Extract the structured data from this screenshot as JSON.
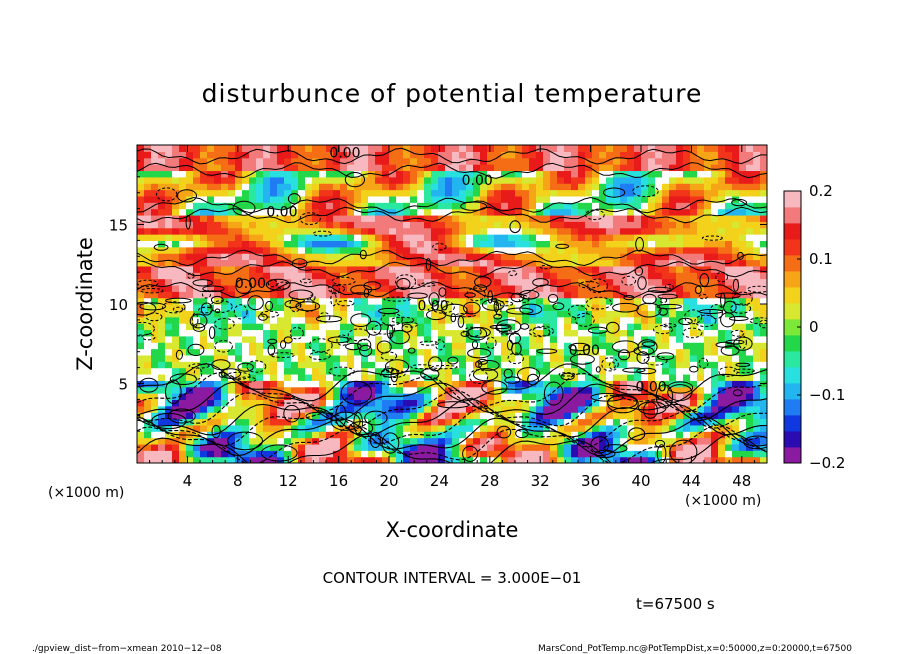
{
  "chart_data": {
    "type": "heatmap",
    "title": "disturbunce of potential temperature",
    "xlabel": "X-coordinate",
    "ylabel": "Z-coordinate",
    "x_unit": "(×1000 m)",
    "z_unit": "(×1000 m)",
    "xlim": [
      0,
      50
    ],
    "ylim": [
      0,
      20
    ],
    "x_ticks": [
      "4",
      "8",
      "12",
      "16",
      "20",
      "24",
      "28",
      "32",
      "36",
      "40",
      "44",
      "48"
    ],
    "x_tick_values": [
      4,
      8,
      12,
      16,
      20,
      24,
      28,
      32,
      36,
      40,
      44,
      48
    ],
    "y_ticks": [
      "5",
      "10",
      "15"
    ],
    "y_tick_values": [
      5,
      10,
      15
    ],
    "colorbar": {
      "min": -0.2,
      "max": 0.2,
      "ticks": [
        "0.2",
        "0.1",
        "0",
        "−0.1",
        "−0.2"
      ],
      "tick_values": [
        0.2,
        0.1,
        0,
        -0.1,
        -0.2
      ],
      "colors": [
        "#8a1aa0",
        "#2a0cb0",
        "#1038e0",
        "#1f7cf2",
        "#22b5f0",
        "#28e0e0",
        "#2ae8a0",
        "#22d84a",
        "#7ce838",
        "#d8e830",
        "#f2d21a",
        "#f5a516",
        "#f56e16",
        "#f2341a",
        "#e81a1a",
        "#f27a7a",
        "#f8b8c0"
      ]
    },
    "contour_labels": [
      "0.00",
      "0.00",
      "0.00",
      "0.00",
      "0.00",
      "0.00",
      "0.00"
    ],
    "contour_interval_text": "CONTOUR INTERVAL = 3.000E−01",
    "time_text": "t=67500 s"
  },
  "footer": {
    "left": "./gpview_dist−from−xmean  2010−12−08",
    "right": "MarsCond_PotTemp.nc@PotTempDist,x=0:50000,z=0:20000,t=67500"
  }
}
